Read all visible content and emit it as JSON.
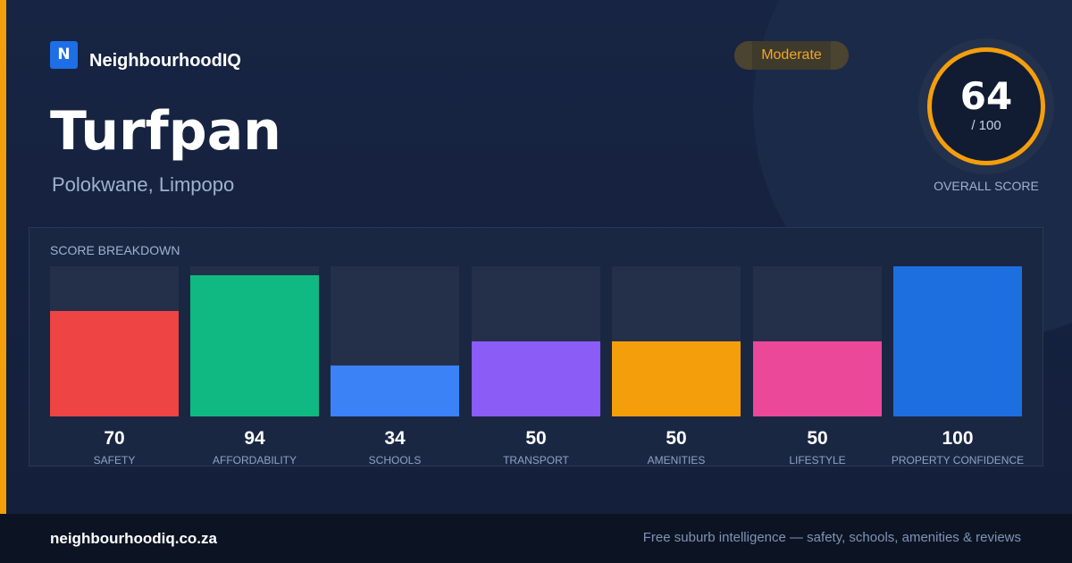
{
  "brand": {
    "logo_letter": "N",
    "name": "NeighbourhoodIQ"
  },
  "suburb": {
    "name": "Turfpan",
    "location": "Polokwane, Limpopo"
  },
  "rating": {
    "label": "Moderate",
    "color": "#f5a524"
  },
  "overall": {
    "score": "64",
    "max": "/ 100",
    "caption": "OVERALL SCORE",
    "ring_color": "#f59e0b"
  },
  "breakdown": {
    "title": "SCORE BREAKDOWN",
    "metrics": [
      {
        "label": "SAFETY",
        "value": "70",
        "score": 70,
        "color": "#ef4444"
      },
      {
        "label": "AFFORDABILITY",
        "value": "94",
        "score": 94,
        "color": "#10b981"
      },
      {
        "label": "SCHOOLS",
        "value": "34",
        "score": 34,
        "color": "#3b82f6"
      },
      {
        "label": "TRANSPORT",
        "value": "50",
        "score": 50,
        "color": "#8b5cf6"
      },
      {
        "label": "AMENITIES",
        "value": "50",
        "score": 50,
        "color": "#f59e0b"
      },
      {
        "label": "LIFESTYLE",
        "value": "50",
        "score": 50,
        "color": "#ec4899"
      },
      {
        "label": "PROPERTY CONFIDENCE",
        "value": "100",
        "score": 100,
        "color": "#1d6fe0"
      }
    ]
  },
  "footer": {
    "url": "neighbourhoodiq.co.za",
    "tagline": "Free suburb intelligence — safety, schools, amenities & reviews"
  }
}
